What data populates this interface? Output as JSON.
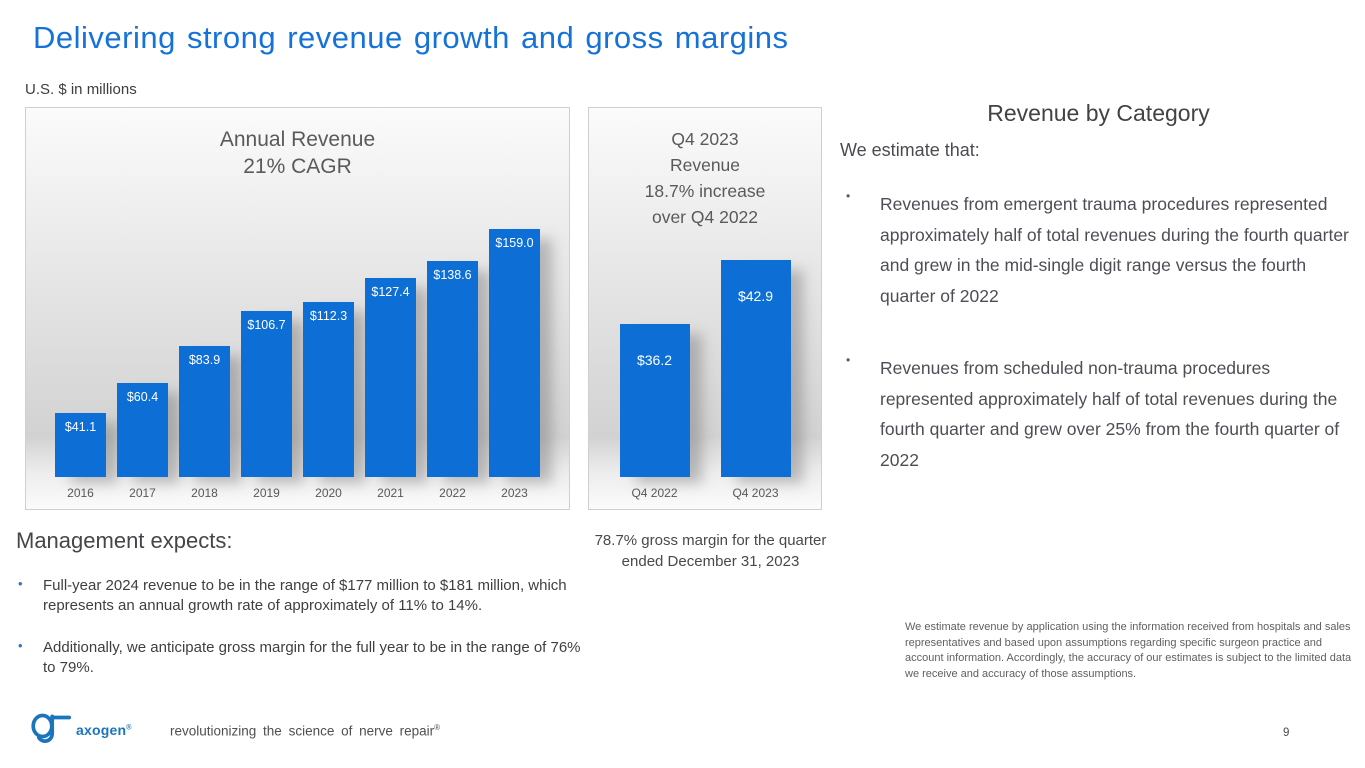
{
  "colors": {
    "title_blue": "#1472d8",
    "bar_blue": "#0d6fd6",
    "logo_blue": "#1b75bc",
    "bullet_blue": "#2e75c6",
    "chart_text_gray": "#595959"
  },
  "header": {
    "title": "Delivering strong revenue growth and gross margins",
    "units_note": "U.S. $ in millions"
  },
  "chart_data": [
    {
      "type": "bar",
      "title": "Annual Revenue\n21% CAGR",
      "categories": [
        "2016",
        "2017",
        "2018",
        "2019",
        "2020",
        "2021",
        "2022",
        "2023"
      ],
      "values": [
        41.1,
        60.4,
        83.9,
        106.7,
        112.3,
        127.4,
        138.6,
        159.0
      ],
      "data_labels": [
        "$41.1",
        "$60.4",
        "$83.9",
        "$106.7",
        "$112.3",
        "$127.4",
        "$138.6",
        "$159.0"
      ],
      "units": "U.S. $ in millions",
      "ylim": [
        0,
        170
      ],
      "grid": false,
      "legend": false,
      "bar_color": "#0d6fd6"
    },
    {
      "type": "bar",
      "title": "Q4 2023\nRevenue\n18.7% increase\nover Q4 2022",
      "categories": [
        "Q4 2022",
        "Q4 2023"
      ],
      "values": [
        36.2,
        42.9
      ],
      "data_labels": [
        "$36.2",
        "$42.9"
      ],
      "units": "U.S. $ in millions",
      "ylim": [
        20,
        48.5
      ],
      "grid": false,
      "legend": false,
      "bar_color": "#0d6fd6"
    }
  ],
  "right_panel": {
    "heading": "Revenue by Category",
    "intro": "We estimate that:",
    "bullet_marker": "•",
    "bullets": [
      {
        "text": "Revenues from emergent trauma procedures represented approximately half of total revenues during the fourth quarter and grew in the mid-single digit range versus the fourth quarter of 2022"
      },
      {
        "text": "Revenues from scheduled non-trauma procedures represented approximately half of total revenues during the fourth quarter and grew over 25% from the fourth quarter of 2022"
      }
    ]
  },
  "management": {
    "heading": "Management expects:",
    "bullet_marker": "•",
    "bullets": [
      {
        "text": "Full-year 2024 revenue to be in the range of $177 million to $181 million, which represents an annual growth rate of approximately of 11% to 14%."
      },
      {
        "text": "Additionally, we anticipate gross margin for the full year to be in the range of 76% to 79%."
      }
    ]
  },
  "gross_margin_note": "78.7% gross margin for the quarter ended December 31, 2023",
  "disclaimer": "We estimate revenue by application using the information received from hospitals and sales representatives and based upon assumptions regarding specific surgeon practice and account information. Accordingly, the accuracy of our estimates is subject to the limited data we receive and accuracy of those assumptions.",
  "footer": {
    "brand": "axogen",
    "brand_mark": "®",
    "tagline": "revolutionizing the science of nerve repair",
    "tagline_mark": "®",
    "page_number": "9"
  }
}
